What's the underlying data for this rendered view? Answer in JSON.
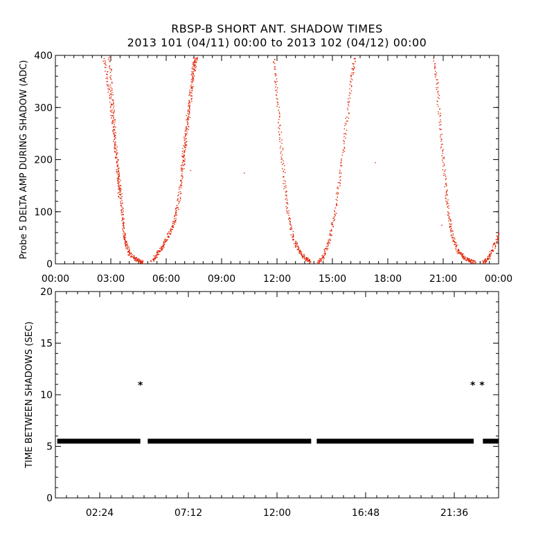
{
  "title_line1": "RBSP-B SHORT ANT. SHADOW TIMES",
  "title_line2": "2013 101 (04/11) 00:00 to 2013 102 (04/12) 00:00",
  "chart_data": [
    {
      "type": "scatter",
      "ylabel": "Probe 5 DELTA AMP DURING SHADOW (ADC)",
      "x_unit": "hours",
      "xlim": [
        0,
        24
      ],
      "ylim": [
        0,
        400
      ],
      "x_ticks": [
        0,
        3,
        6,
        9,
        12,
        15,
        18,
        21,
        24
      ],
      "x_tick_labels": [
        "00:00",
        "03:00",
        "06:00",
        "09:00",
        "12:00",
        "15:00",
        "18:00",
        "21:00",
        "00:00"
      ],
      "y_ticks": [
        0,
        100,
        200,
        300,
        400
      ],
      "y_tick_labels": [
        "0",
        "100",
        "200",
        "300",
        "400"
      ],
      "color": "#e02000",
      "series": [
        {
          "x": [
            2.6,
            2.9,
            3.1,
            3.3,
            3.5,
            3.6,
            3.7,
            3.8,
            4.0,
            4.3,
            4.6,
            4.7
          ],
          "y": [
            400,
            330,
            270,
            200,
            140,
            100,
            60,
            40,
            20,
            10,
            5,
            2
          ]
        },
        {
          "x": [
            2.9,
            3.05,
            3.2,
            3.35,
            3.45
          ],
          "y": [
            400,
            320,
            250,
            180,
            130
          ]
        },
        {
          "x": [
            5.2,
            5.5,
            5.8,
            6.1,
            6.4,
            6.6,
            6.8,
            7.0,
            7.2,
            7.5,
            7.6
          ],
          "y": [
            5,
            20,
            35,
            55,
            80,
            110,
            160,
            220,
            290,
            370,
            400
          ]
        },
        {
          "x": [
            6.8,
            7.0,
            7.2,
            7.4,
            7.5
          ],
          "y": [
            180,
            240,
            300,
            360,
            400
          ]
        },
        {
          "x": [
            11.8,
            12.0,
            12.2,
            12.4,
            12.6,
            12.9,
            13.2,
            13.5,
            13.8
          ],
          "y": [
            400,
            320,
            230,
            150,
            90,
            45,
            25,
            12,
            5
          ]
        },
        {
          "x": [
            14.2,
            14.5,
            14.8,
            15.1,
            15.4,
            15.7,
            16.0,
            16.2
          ],
          "y": [
            3,
            15,
            45,
            95,
            170,
            260,
            350,
            400
          ]
        },
        {
          "x": [
            20.5,
            20.7,
            20.9,
            21.1,
            21.3,
            21.5,
            21.8,
            22.1,
            22.4,
            22.7
          ],
          "y": [
            400,
            320,
            230,
            150,
            90,
            50,
            25,
            12,
            8,
            3
          ]
        },
        {
          "x": [
            23.1,
            23.4,
            23.7,
            24.0
          ],
          "y": [
            3,
            10,
            30,
            60
          ]
        },
        {
          "x": [
            10.2,
            17.3,
            7.3,
            20.9
          ],
          "y": [
            175,
            195,
            180,
            75
          ]
        }
      ]
    },
    {
      "type": "scatter",
      "ylabel": "TIME BETWEEN SHADOWS (SEC)",
      "x_unit": "hours",
      "xlim": [
        0,
        24
      ],
      "ylim": [
        0,
        20
      ],
      "x_ticks": [
        2.4,
        7.2,
        12.0,
        16.8,
        21.6
      ],
      "x_tick_labels": [
        "02:24",
        "07:12",
        "12:00",
        "16:48",
        "21:36"
      ],
      "y_ticks": [
        0,
        5,
        10,
        15,
        20
      ],
      "y_tick_labels": [
        "0",
        "5",
        "10",
        "15",
        "20"
      ],
      "color": "#000000",
      "baseline": {
        "y": 5.5,
        "segments": [
          [
            0.1,
            4.6
          ],
          [
            5.0,
            13.85
          ],
          [
            14.15,
            22.65
          ],
          [
            23.15,
            24.0
          ]
        ]
      },
      "series": [
        {
          "name": "",
          "x": [
            4.6,
            22.6,
            23.1
          ],
          "y": [
            11,
            11,
            11
          ]
        }
      ]
    }
  ]
}
